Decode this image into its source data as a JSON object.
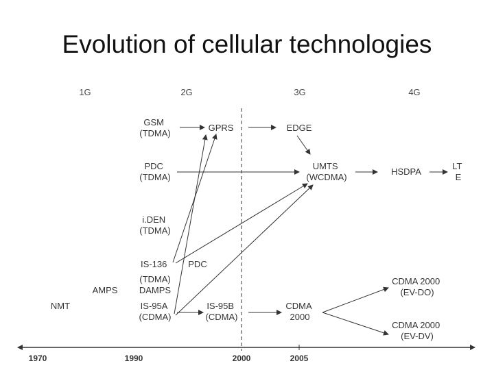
{
  "title": "Evolution of cellular technologies",
  "generations": {
    "g1": "1G",
    "g2": "2G",
    "g3": "3G",
    "g4": "4G"
  },
  "years": {
    "y1970": "1970",
    "y1990": "1990",
    "y2000": "2000",
    "y2005": "2005"
  },
  "nodes": {
    "gsm": {
      "line1": "GSM",
      "line2": "(TDMA)"
    },
    "gprs": "GPRS",
    "edge": "EDGE",
    "pdc2g": {
      "line1": "PDC",
      "line2": "(TDMA)"
    },
    "umts": {
      "line1": "UMTS",
      "line2": "(WCDMA)"
    },
    "hsdpa": "HSDPA",
    "lte": {
      "line1": "LT",
      "line2": "E"
    },
    "iden": {
      "line1": "i.DEN",
      "line2": "(TDMA)"
    },
    "is136": {
      "line1": "IS-136",
      "line2": "(TDMA)"
    },
    "pdc_label": "PDC",
    "damps": "DAMPS",
    "amps": "AMPS",
    "nmt": "NMT",
    "is95a": {
      "line1": "IS-95A",
      "line2": "(CDMA)"
    },
    "is95b": {
      "line1": "IS-95B",
      "line2": "(CDMA)"
    },
    "cdma2000": {
      "line1": "CDMA",
      "line2": "2000"
    },
    "evdo": {
      "line1": "CDMA 2000",
      "line2": "(EV-DO)"
    },
    "evdv": {
      "line1": "CDMA 2000",
      "line2": "(EV-DV)"
    }
  }
}
